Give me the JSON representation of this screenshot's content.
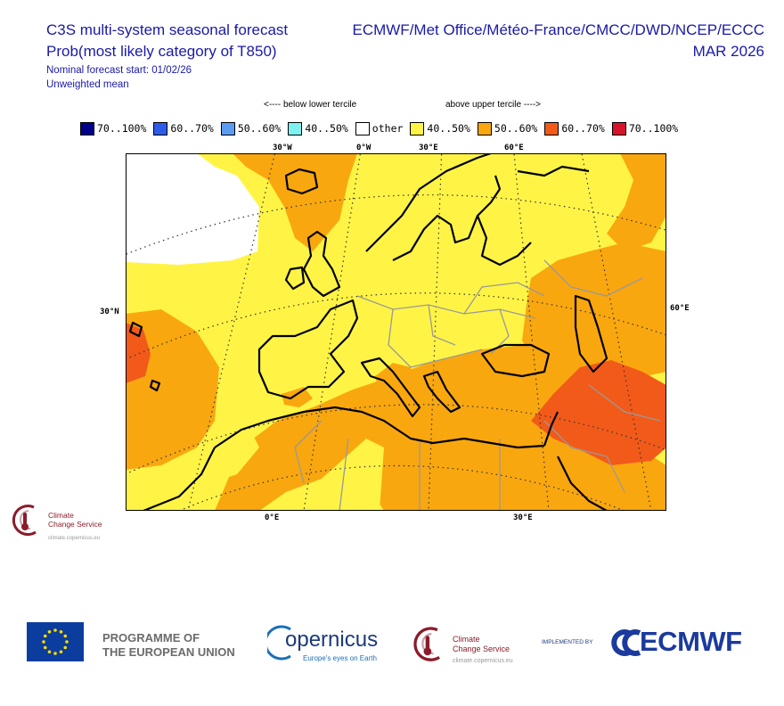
{
  "header": {
    "title_line1": "C3S multi-system seasonal forecast",
    "title_line2": "Prob(most likely category of T850)",
    "subtitle_line1": "Nominal forecast start: 01/02/26",
    "subtitle_line2": "Unweighted mean",
    "centres": "ECMWF/Met Office/Météo-France/CMCC/DWD/NCEP/ECCC",
    "valid_month": "MAR 2026"
  },
  "legend": {
    "below_label": "<---- below lower tercile",
    "above_label": "above upper tercile ---->",
    "items": [
      {
        "label": "70..100%",
        "color": "#00008b"
      },
      {
        "label": "60..70%",
        "color": "#2e5be8"
      },
      {
        "label": "50..60%",
        "color": "#5b9cf0"
      },
      {
        "label": "40..50%",
        "color": "#7df0f0"
      },
      {
        "label": "other",
        "color": "#ffffff"
      },
      {
        "label": "40..50%",
        "color": "#fff445"
      },
      {
        "label": "50..60%",
        "color": "#f9a70f"
      },
      {
        "label": "60..70%",
        "color": "#f25a1a"
      },
      {
        "label": "70..100%",
        "color": "#d6152a"
      }
    ]
  },
  "map": {
    "top_ticks": [
      "30°W",
      "0°W",
      "30°E",
      "60°E"
    ],
    "left_tick": "30°N",
    "right_tick": "60°E",
    "bottom_ticks": [
      "0°E",
      "30°E"
    ]
  },
  "logos": {
    "ccs_line1": "Climate",
    "ccs_line2": "Change Service",
    "ccs_url": "climate.copernicus.eu",
    "eu_line1": "PROGRAMME OF",
    "eu_line2": "THE EUROPEAN UNION",
    "copernicus_name": "opernicus",
    "copernicus_tagline": "Europe's eyes on Earth",
    "implemented_by": "IMPLEMENTED BY",
    "ecmwf": "ECMWF"
  }
}
